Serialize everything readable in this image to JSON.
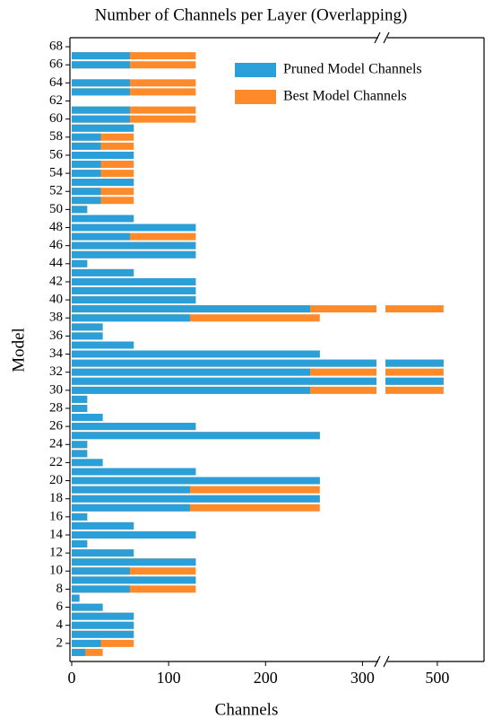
{
  "chart_data": {
    "type": "bar",
    "orientation": "horizontal",
    "title": "Number of Channels per Layer (Overlapping)",
    "x_label": "Channels",
    "y_label": "Model",
    "categories": [
      null,
      "2",
      null,
      "4",
      null,
      "6",
      null,
      "8",
      null,
      "10",
      null,
      "12",
      null,
      "14",
      null,
      "16",
      null,
      "18",
      null,
      "20",
      null,
      "22",
      null,
      "24",
      null,
      "26",
      null,
      "28",
      null,
      "30",
      null,
      "32",
      null,
      "34",
      null,
      "36",
      null,
      "38",
      null,
      "40",
      null,
      "42",
      null,
      "44",
      null,
      "46",
      null,
      "48",
      null,
      "50",
      null,
      "52",
      null,
      "54",
      null,
      "56",
      null,
      "58",
      null,
      "60",
      null,
      "62",
      null,
      "64",
      null,
      "66",
      null,
      "68"
    ],
    "series": [
      {
        "name": "Pruned Model Channels",
        "color": "#2a9fd8",
        "values": [
          14,
          30,
          64,
          64,
          64,
          32,
          8,
          60,
          128,
          60,
          128,
          64,
          16,
          128,
          64,
          16,
          122,
          256,
          122,
          256,
          128,
          32,
          16,
          16,
          256,
          128,
          32,
          16,
          16,
          246,
          512,
          246,
          512,
          256,
          64,
          32,
          32,
          122,
          246,
          128,
          128,
          128,
          64,
          16,
          128,
          128,
          60,
          128,
          64,
          16,
          30,
          30,
          64,
          30,
          30,
          64,
          30,
          30,
          64,
          60,
          60,
          0,
          60,
          60,
          0,
          60,
          60,
          0
        ]
      },
      {
        "name": "Best Model Channels",
        "color": "#ff8a2a",
        "values": [
          32,
          64,
          64,
          64,
          64,
          32,
          8,
          128,
          128,
          128,
          128,
          64,
          16,
          128,
          64,
          16,
          256,
          256,
          256,
          256,
          128,
          32,
          16,
          16,
          256,
          128,
          32,
          16,
          16,
          512,
          512,
          512,
          512,
          256,
          64,
          32,
          32,
          256,
          512,
          128,
          128,
          128,
          64,
          16,
          128,
          128,
          128,
          128,
          64,
          16,
          64,
          64,
          64,
          64,
          64,
          64,
          64,
          64,
          64,
          128,
          128,
          0,
          128,
          128,
          0,
          128,
          128,
          0
        ]
      }
    ],
    "ylim": [
      0,
      69
    ],
    "xlim": [
      0,
      320
    ],
    "xticks": [
      0,
      100,
      200,
      300
    ],
    "x2lim": [
      400,
      590
    ],
    "x2ticks": [
      500
    ],
    "legend": "upper center"
  }
}
